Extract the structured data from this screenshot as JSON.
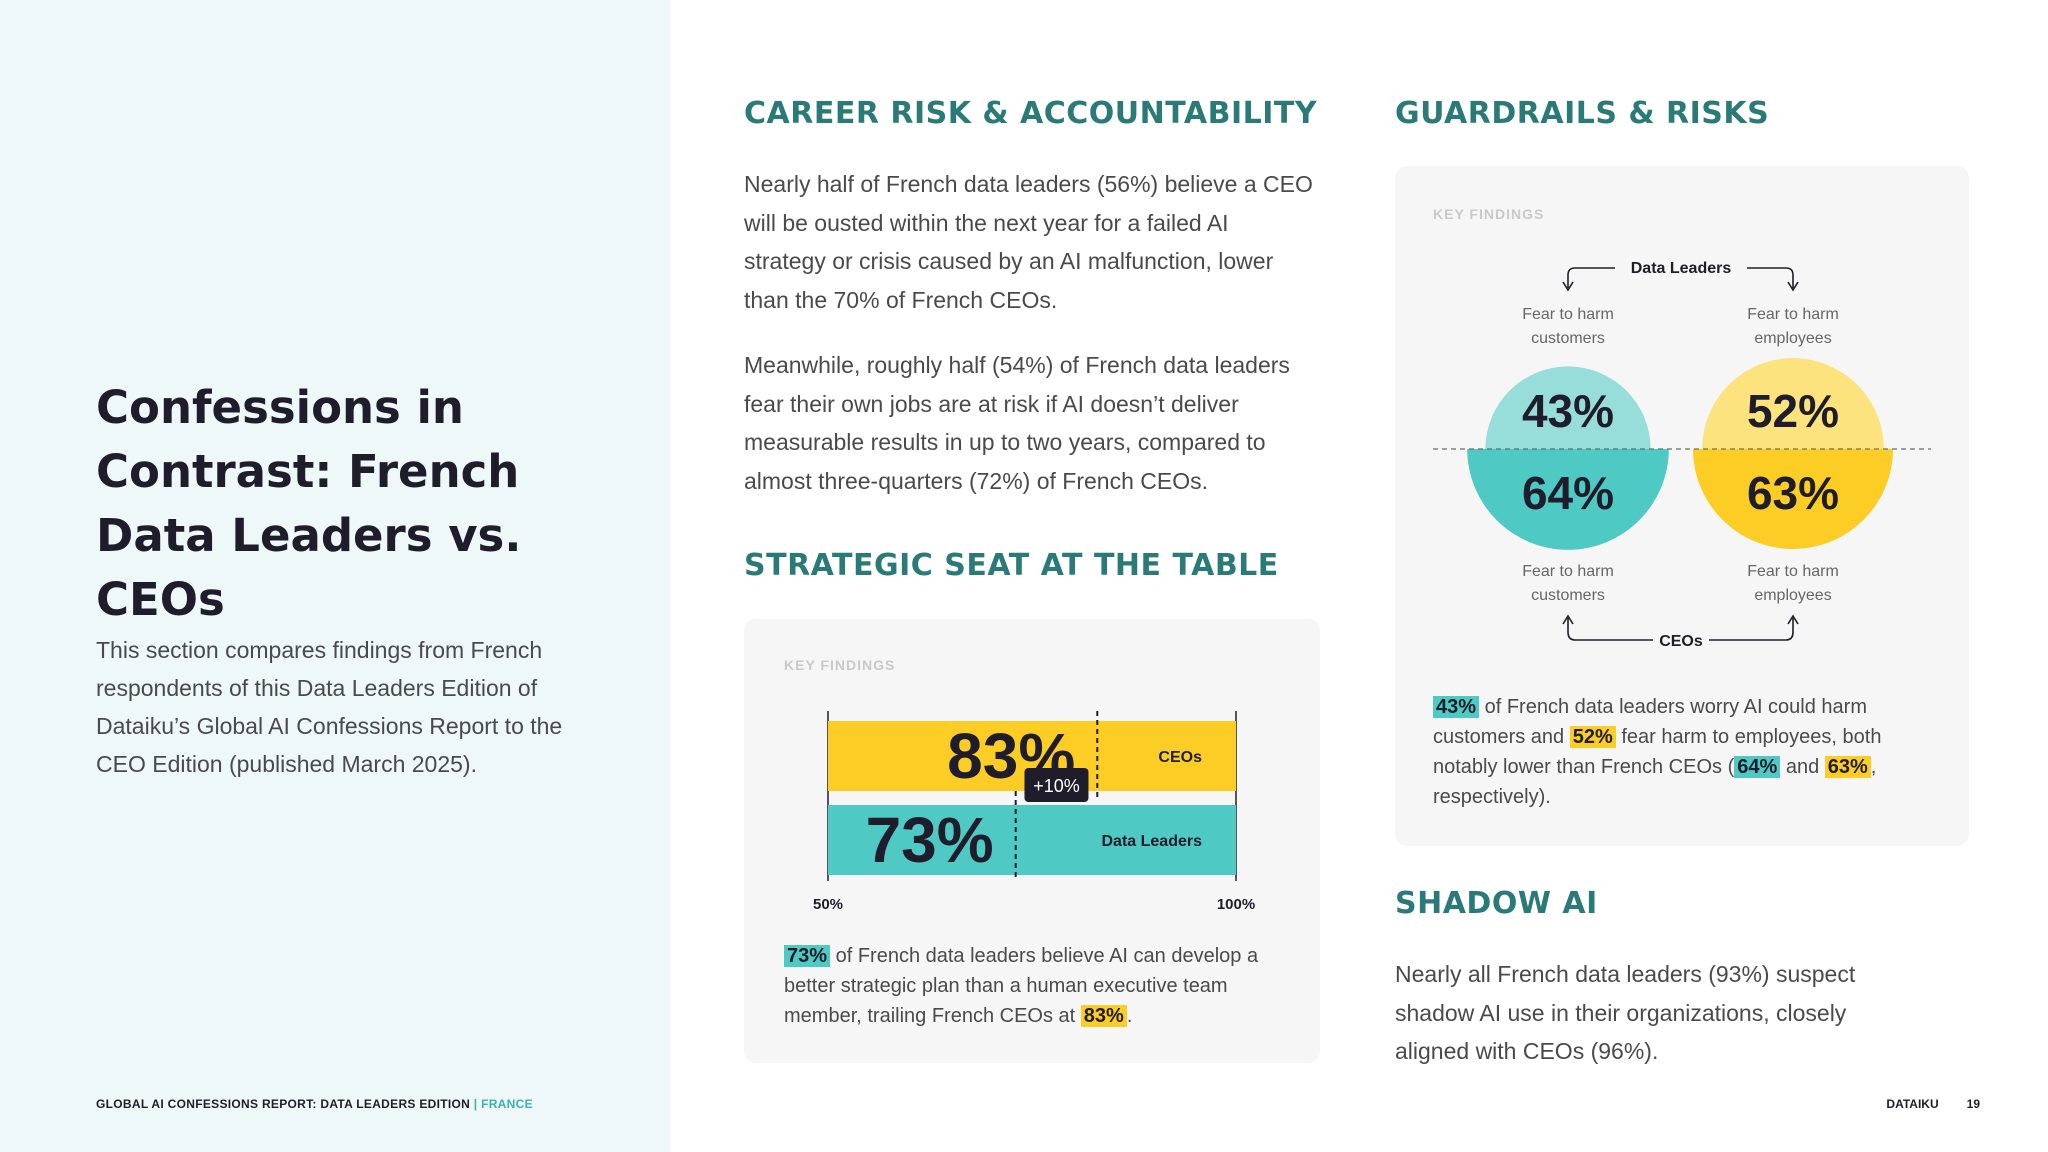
{
  "left": {
    "title": "Confessions in Contrast: French Data Leaders vs. CEOs",
    "intro": "This section compares findings from French respondents of this Data Leaders Edition of Dataiku’s Global AI Confessions Report to the CEO Edition (published March 2025).",
    "footer_report": "GLOBAL AI CONFESSIONS REPORT: DATA LEADERS EDITION",
    "footer_sep": " | ",
    "footer_country": "FRANCE"
  },
  "footer": {
    "brand": "DATAIKU",
    "page": "19"
  },
  "career": {
    "heading": "CAREER RISK & ACCOUNTABILITY",
    "para1": "Nearly half of French data leaders (56%) believe a CEO will be ousted within the next year for a failed AI strategy or crisis caused by an AI malfunction, lower than the 70% of French CEOs.",
    "para2": "Meanwhile, roughly half (54%) of French data leaders fear their own jobs are at risk if AI doesn’t deliver measurable results in up to two years, compared to almost three-quarters (72%) of French CEOs."
  },
  "strategic": {
    "heading": "STRATEGIC SEAT AT THE TABLE",
    "card_label": "KEY FINDINGS",
    "caption_hl1": "73%",
    "caption_mid": " of French data leaders believe AI can develop a better strategic plan than a human executive team member, trailing French CEOs at ",
    "caption_hl2": "83%",
    "caption_end": "."
  },
  "guardrails": {
    "heading": "GUARDRAILS & RISKS",
    "card_label": "KEY FINDINGS",
    "top_group": "Data Leaders",
    "bottom_group": "CEOs",
    "label_customers": "Fear to harm customers",
    "label_employees": "Fear to harm employees",
    "caption_hl1": "43%",
    "caption_t1": " of French data leaders worry AI could harm customers and ",
    "caption_hl2": "52%",
    "caption_t2": " fear harm to employees, both notably lower than French CEOs (",
    "caption_hl3": "64%",
    "caption_t3": " and ",
    "caption_hl4": "63%",
    "caption_t4": ", respectively)."
  },
  "shadow": {
    "heading": "SHADOW AI",
    "para": "Nearly all French data leaders (93%) suspect shadow AI use in their organizations, closely aligned with CEOs (96%)."
  },
  "colors": {
    "teal": "#4ec9c4",
    "teal_light": "#97dedb",
    "yellow": "#fccd25",
    "yellow_light": "#fde37e",
    "heading": "#2a7a78",
    "dark": "#1f1d2b"
  },
  "chart_data": [
    {
      "type": "bar",
      "orientation": "horizontal",
      "categories": [
        "CEOs",
        "Data Leaders"
      ],
      "values": [
        83,
        73
      ],
      "value_labels": [
        "83%",
        "73%"
      ],
      "xlim": [
        50,
        100
      ],
      "tick_labels": [
        "50%",
        "100%"
      ],
      "annotation": "+10%",
      "colors": [
        "#fccd25",
        "#4ec9c4"
      ]
    },
    {
      "type": "bubble",
      "groups": [
        "Data Leaders",
        "CEOs"
      ],
      "categories": [
        "Fear to harm customers",
        "Fear to harm employees"
      ],
      "series": [
        {
          "name": "Data Leaders",
          "values": [
            43,
            52
          ],
          "labels": [
            "43%",
            "52%"
          ]
        },
        {
          "name": "CEOs",
          "values": [
            64,
            63
          ],
          "labels": [
            "64%",
            "63%"
          ]
        }
      ]
    }
  ]
}
